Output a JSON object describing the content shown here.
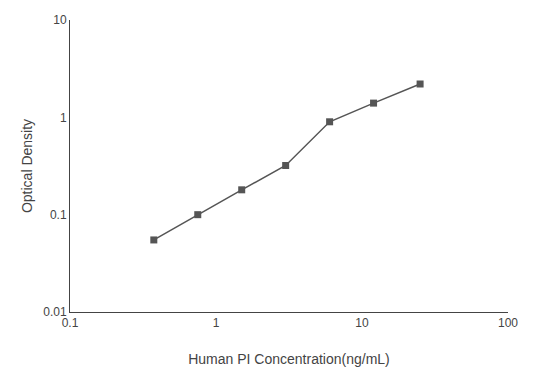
{
  "chart_data": {
    "type": "line",
    "x": [
      0.375,
      0.75,
      1.5,
      3.0,
      6.0,
      12.0,
      25.0
    ],
    "values": [
      0.055,
      0.1,
      0.18,
      0.32,
      0.9,
      1.4,
      2.2
    ],
    "xlabel": "Human PI Concentration(ng/mL)",
    "ylabel": "Optical Density",
    "xlim": [
      0.1,
      100
    ],
    "ylim": [
      0.01,
      10
    ],
    "xticks": [
      0.1,
      1,
      10,
      100
    ],
    "yticks": [
      0.01,
      0.1,
      1,
      10
    ],
    "log": true,
    "grid": false,
    "color": "#555555",
    "marker": "square",
    "line_style": "solid"
  }
}
